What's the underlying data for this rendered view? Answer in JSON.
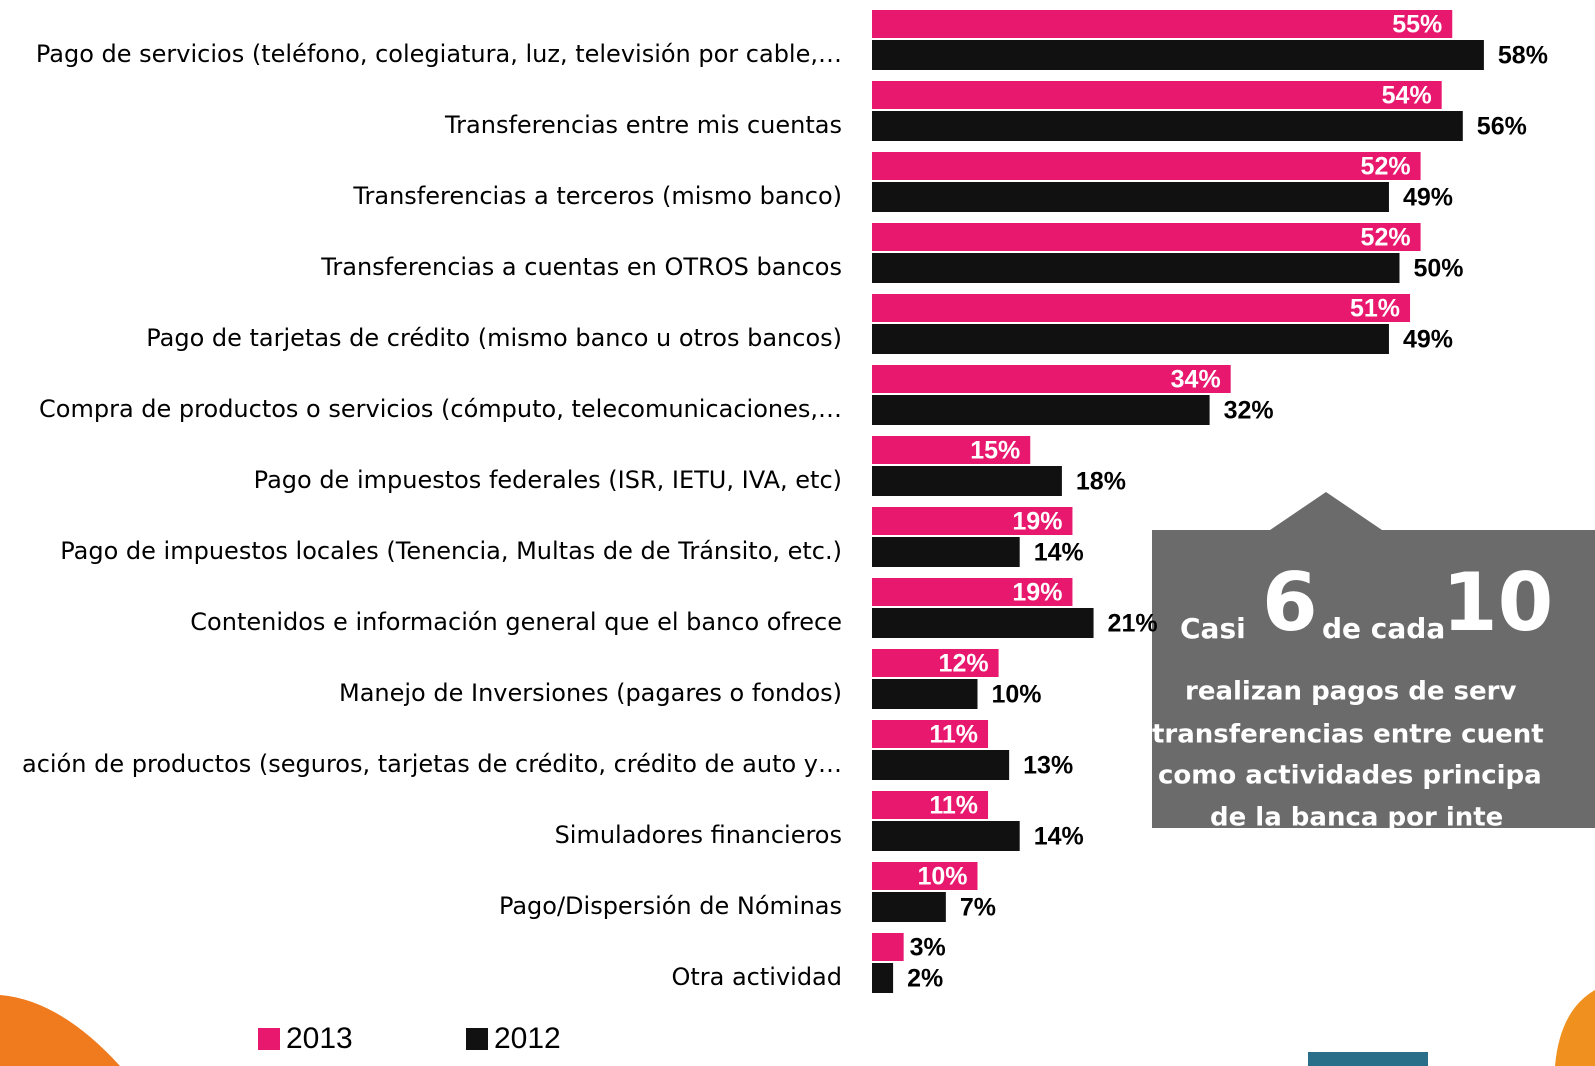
{
  "chart_data": {
    "type": "bar",
    "orientation": "horizontal",
    "categories": [
      "Pago de servicios (teléfono, colegiatura, luz, televisión por cable,…",
      "Transferencias entre mis cuentas",
      "Transferencias a terceros (mismo banco)",
      "Transferencias a cuentas en OTROS bancos",
      "Pago de tarjetas de crédito (mismo banco u otros bancos)",
      "Compra de productos o servicios (cómputo, telecomunicaciones,…",
      "Pago de impuestos federales (ISR, IETU, IVA, etc)",
      "Pago de impuestos locales (Tenencia, Multas de de Tránsito, etc.)",
      "Contenidos e información general que el banco ofrece",
      "Manejo de Inversiones (pagares o fondos)",
      "ación de productos (seguros, tarjetas de crédito, crédito de auto y…",
      "Simuladores financieros",
      "Pago/Dispersión de Nóminas",
      "Otra actividad"
    ],
    "series": [
      {
        "name": "2013",
        "color": "#e8186f",
        "values": [
          55,
          54,
          52,
          52,
          51,
          34,
          15,
          19,
          19,
          12,
          11,
          11,
          10,
          3
        ],
        "value_labels": [
          "55%",
          "54%",
          "52%",
          "52%",
          "51%",
          "34%",
          "15%",
          "19%",
          "19%",
          "12%",
          "11%",
          "11%",
          "10%",
          "3%"
        ]
      },
      {
        "name": "2012",
        "color": "#111111",
        "values": [
          58,
          56,
          49,
          50,
          49,
          32,
          18,
          14,
          21,
          10,
          13,
          14,
          7,
          2
        ],
        "value_labels": [
          "58%",
          "56%",
          "49%",
          "50%",
          "49%",
          "32%",
          "18%",
          "14%",
          "21%",
          "10%",
          "13%",
          "14%",
          "7%",
          "2%"
        ]
      }
    ],
    "legend": "bottom",
    "callout": {
      "lines": [
        "Casi",
        "6",
        "de cada",
        "10",
        "realizan pagos de serv",
        "transferencias entre cuent",
        "como actividades principa",
        "de la banca por inte"
      ]
    }
  }
}
